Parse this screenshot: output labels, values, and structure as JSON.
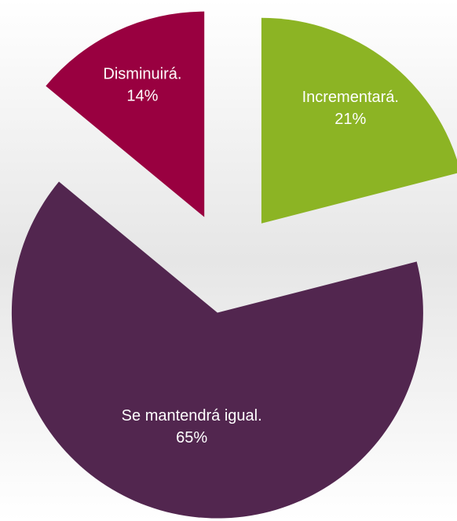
{
  "chart_data": {
    "type": "pie",
    "categories": [
      "Incrementará.",
      "Se mantendrá igual.",
      "Disminuirá."
    ],
    "values": [
      21,
      65,
      14
    ],
    "value_labels": [
      "21%",
      "65%",
      "14%"
    ],
    "colors": [
      "#8cb424",
      "#52264f",
      "#990040"
    ]
  }
}
